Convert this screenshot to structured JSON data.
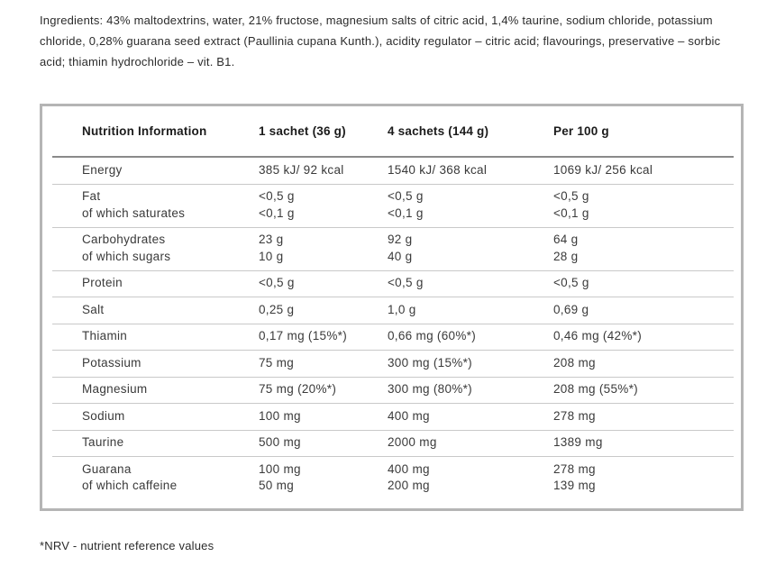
{
  "ingredients": "Ingredients: 43% maltodextrins, water, 21% fructose, magnesium salts of citric acid, 1,4% taurine, sodium chloride, potassium chloride, 0,28% guarana seed extract (Paullinia cupana Kunth.), acidity regulator – citric acid; flavourings, preservative – sorbic acid; thiamin hydrochloride – vit. B1.",
  "table": {
    "headers": [
      "Nutrition Information",
      "1 sachet (36 g)",
      "4 sachets (144 g)",
      "Per 100 g"
    ],
    "rows": [
      {
        "cells": [
          [
            "Energy"
          ],
          [
            "385 kJ/ 92 kcal"
          ],
          [
            "1540 kJ/ 368 kcal"
          ],
          [
            "1069 kJ/ 256 kcal"
          ]
        ]
      },
      {
        "cells": [
          [
            "Fat",
            "of which saturates"
          ],
          [
            "<0,5 g",
            "<0,1 g"
          ],
          [
            "<0,5 g",
            "<0,1 g"
          ],
          [
            "<0,5 g",
            "<0,1 g"
          ]
        ]
      },
      {
        "cells": [
          [
            "Carbohydrates",
            "of which sugars"
          ],
          [
            "23 g",
            "10 g"
          ],
          [
            "92 g",
            "40 g"
          ],
          [
            "64 g",
            "28 g"
          ]
        ]
      },
      {
        "cells": [
          [
            "Protein"
          ],
          [
            "<0,5 g"
          ],
          [
            "<0,5 g"
          ],
          [
            "<0,5 g"
          ]
        ]
      },
      {
        "cells": [
          [
            "Salt"
          ],
          [
            "0,25 g"
          ],
          [
            "1,0 g"
          ],
          [
            "0,69 g"
          ]
        ]
      },
      {
        "cells": [
          [
            "Thiamin"
          ],
          [
            "0,17 mg (15%*)"
          ],
          [
            "0,66 mg (60%*)"
          ],
          [
            "0,46 mg (42%*)"
          ]
        ]
      },
      {
        "cells": [
          [
            "Potassium"
          ],
          [
            "75 mg"
          ],
          [
            "300 mg (15%*)"
          ],
          [
            "208 mg"
          ]
        ]
      },
      {
        "cells": [
          [
            "Magnesium"
          ],
          [
            "75 mg (20%*)"
          ],
          [
            "300 mg (80%*)"
          ],
          [
            "208 mg (55%*)"
          ]
        ]
      },
      {
        "cells": [
          [
            "Sodium"
          ],
          [
            "100 mg"
          ],
          [
            "400 mg"
          ],
          [
            "278 mg"
          ]
        ]
      },
      {
        "cells": [
          [
            "Taurine"
          ],
          [
            "500 mg"
          ],
          [
            "2000 mg"
          ],
          [
            "1389 mg"
          ]
        ]
      },
      {
        "cells": [
          [
            "Guarana",
            "of which caffeine"
          ],
          [
            "100 mg",
            "50 mg"
          ],
          [
            "400 mg",
            "200 mg"
          ],
          [
            "278 mg",
            "139 mg"
          ]
        ]
      }
    ]
  },
  "footnote": "*NRV - nutrient reference values",
  "colors": {
    "box_border": "#b5b5b5",
    "header_divider": "#8a8a8a",
    "row_divider": "#c9c9c9",
    "text": "#2b2b2b"
  }
}
